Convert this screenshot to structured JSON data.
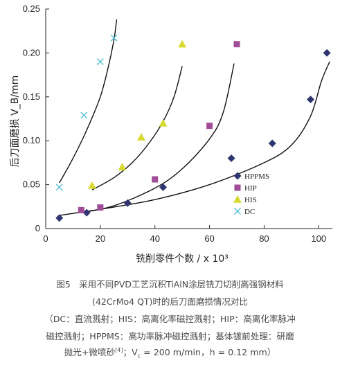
{
  "chart_data": {
    "type": "scatter",
    "xlabel": "铣削零件个数 / x 10³",
    "ylabel": "后刀面磨损 V_B/mm",
    "xlim": [
      0,
      105
    ],
    "ylim": [
      0,
      0.25
    ],
    "x_ticks": [
      "0",
      "20",
      "40",
      "60",
      "80",
      "100"
    ],
    "y_ticks": [
      "0",
      "0.05",
      "0.10",
      "0.15",
      "0.20",
      "0.25"
    ],
    "legend_position": "bottom-right",
    "series": [
      {
        "name": "HPPMS",
        "marker": "diamond",
        "color": "#2e3470",
        "points": [
          [
            5,
            0.012
          ],
          [
            15,
            0.018
          ],
          [
            30,
            0.029
          ],
          [
            43,
            0.047
          ],
          [
            68,
            0.08
          ],
          [
            83,
            0.097
          ],
          [
            97,
            0.147
          ],
          [
            103,
            0.2
          ]
        ],
        "trend": [
          [
            5,
            0.015
          ],
          [
            20,
            0.022
          ],
          [
            40,
            0.033
          ],
          [
            60,
            0.05
          ],
          [
            80,
            0.075
          ],
          [
            90,
            0.095
          ],
          [
            97,
            0.128
          ],
          [
            101,
            0.168
          ],
          [
            104,
            0.19
          ]
        ]
      },
      {
        "name": "HIP",
        "marker": "square",
        "color": "#9e4c97",
        "points": [
          [
            13,
            0.021
          ],
          [
            20,
            0.024
          ],
          [
            40,
            0.056
          ],
          [
            60,
            0.117
          ],
          [
            70,
            0.21
          ]
        ],
        "trend": [
          [
            13,
            0.018
          ],
          [
            25,
            0.026
          ],
          [
            40,
            0.046
          ],
          [
            50,
            0.068
          ],
          [
            60,
            0.102
          ],
          [
            65,
            0.132
          ],
          [
            69,
            0.188
          ]
        ]
      },
      {
        "name": "HIS",
        "marker": "triangle",
        "color": "#d8d930",
        "points": [
          [
            17,
            0.049
          ],
          [
            28,
            0.07
          ],
          [
            35,
            0.104
          ],
          [
            43,
            0.12
          ],
          [
            50,
            0.21
          ]
        ],
        "trend": [
          [
            17,
            0.044
          ],
          [
            25,
            0.058
          ],
          [
            32,
            0.076
          ],
          [
            38,
            0.098
          ],
          [
            43,
            0.122
          ],
          [
            47,
            0.15
          ],
          [
            50,
            0.185
          ]
        ]
      },
      {
        "name": "DC",
        "marker": "x",
        "color": "#5bc1d6",
        "points": [
          [
            5,
            0.047
          ],
          [
            14,
            0.129
          ],
          [
            20,
            0.19
          ],
          [
            25,
            0.217
          ]
        ],
        "trend": [
          [
            5,
            0.052
          ],
          [
            10,
            0.08
          ],
          [
            15,
            0.112
          ],
          [
            20,
            0.15
          ],
          [
            23,
            0.185
          ],
          [
            25,
            0.215
          ],
          [
            26,
            0.238
          ]
        ]
      }
    ]
  },
  "caption": {
    "line1": "图5　采用不同PVD工艺沉积TiAlN涂层铣刀切削高强钢材料",
    "line2": "(42CrMo4 QT)时的后刀面磨损情况对比",
    "line3": "（DC：直流溅射；HIS：高离化率磁控溅射；HIP：高离化率脉冲",
    "line4": "磁控溅射；HPPMS：高功率脉冲磁控溅射；基体镀前处理：研磨",
    "line5a": "抛光+微喷砂",
    "line5_ref": "[4]",
    "line5b": "；V",
    "line5_sub": "c",
    "line5c": " = 200 m/min，h = 0.12 mm）"
  }
}
